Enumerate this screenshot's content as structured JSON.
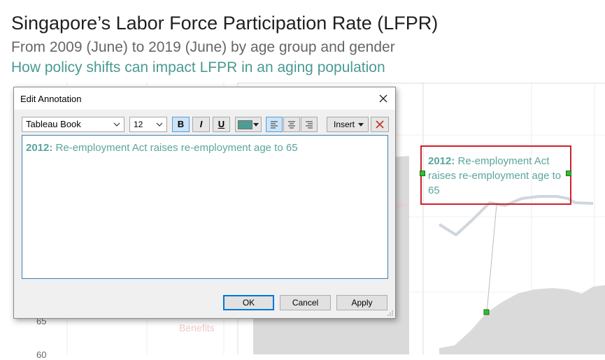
{
  "header": {
    "title": "Singapore’s Labor Force Participation Rate (LFPR)",
    "subtitle": "From 2009 (June) to 2019 (June) by age group and gender",
    "tagline": "How policy shifts can impact LFPR in an aging population"
  },
  "background_chart": {
    "y_ticks": [
      "65",
      "60"
    ],
    "faded_labels": [
      "Benefits"
    ],
    "line_color": "#cfd6de",
    "area_color": "#dadada"
  },
  "annotation": {
    "year": "2012:",
    "text": "Re-employment Act raises re-employment age to 65",
    "border_color": "#d0202a",
    "text_color": "#5aa59d"
  },
  "dialog": {
    "title": "Edit Annotation",
    "close_icon": "close-icon",
    "toolbar": {
      "font": "Tableau Book",
      "size": "12",
      "bold": "B",
      "italic": "I",
      "underline": "U",
      "text_color": "#4e9c94",
      "insert": "Insert"
    },
    "editor": {
      "year": "2012:",
      "text": "Re-employment Act raises re-employment age to 65"
    },
    "buttons": {
      "ok": "OK",
      "cancel": "Cancel",
      "apply": "Apply"
    }
  }
}
